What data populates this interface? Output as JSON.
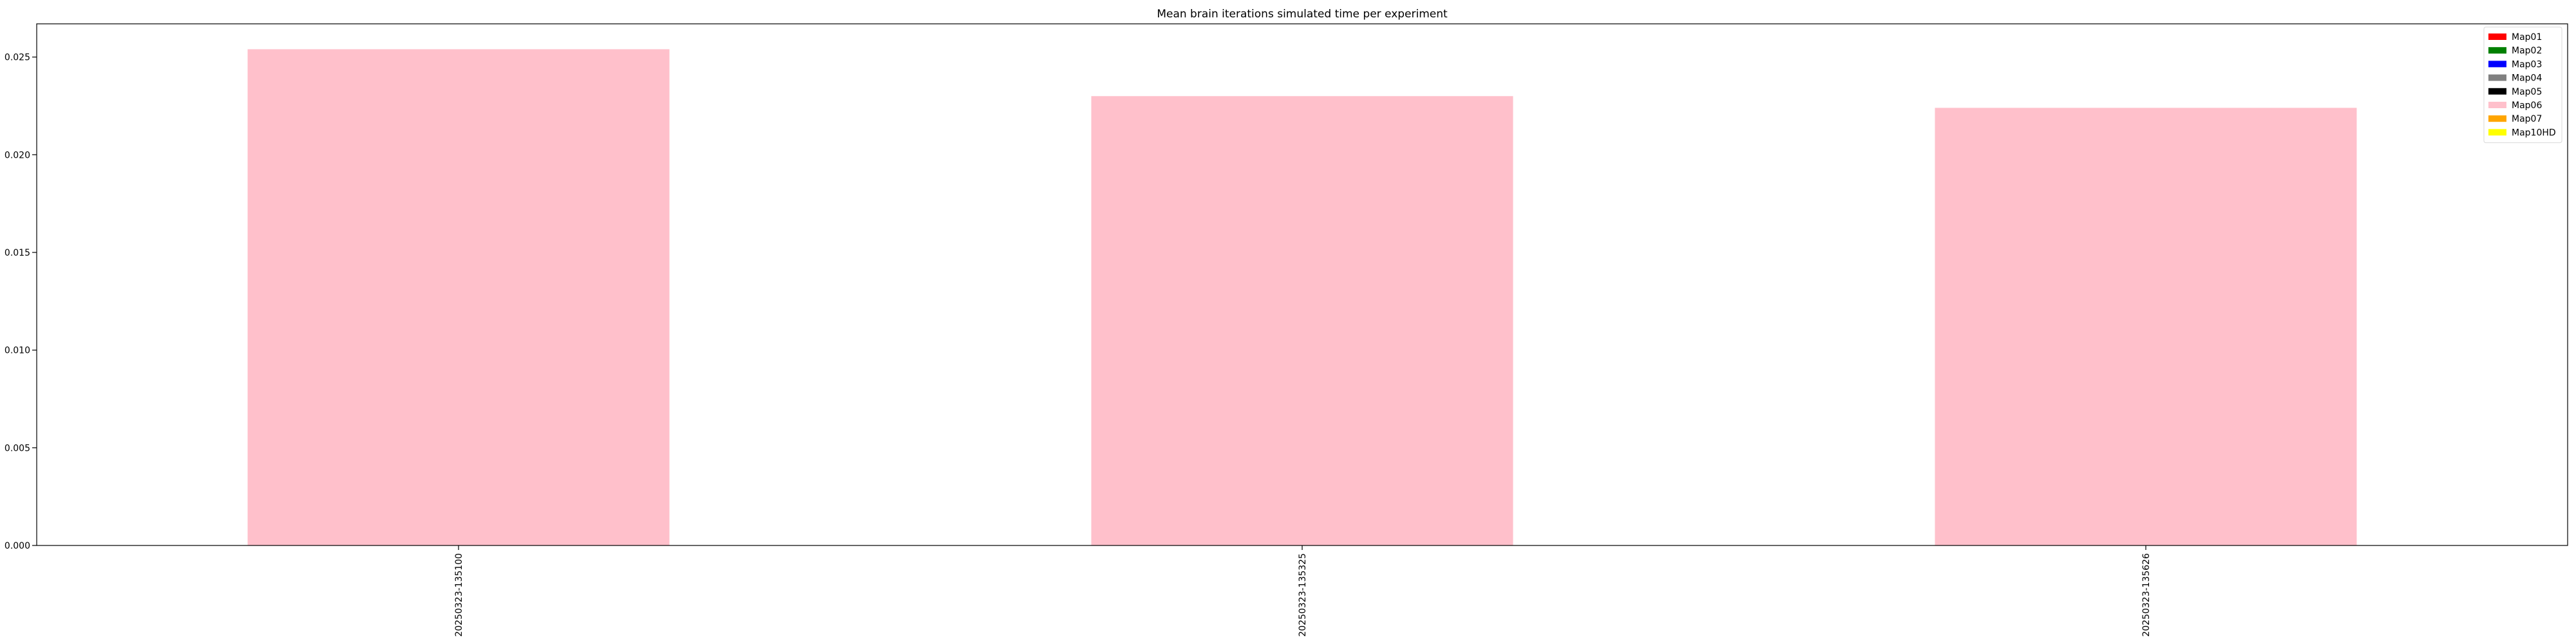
{
  "chart_data": {
    "type": "bar",
    "title": "Mean brain iterations simulated time per experiment",
    "xlabel": "",
    "ylabel": "",
    "categories": [
      "20250323-135100",
      "20250323-135325",
      "20250323-135626"
    ],
    "series": [
      {
        "name": "Map01",
        "color": "#ff0000",
        "values": [
          0,
          0,
          0
        ]
      },
      {
        "name": "Map02",
        "color": "#008000",
        "values": [
          0,
          0,
          0
        ]
      },
      {
        "name": "Map03",
        "color": "#0000ff",
        "values": [
          0,
          0,
          0
        ]
      },
      {
        "name": "Map04",
        "color": "#808080",
        "values": [
          0,
          0,
          0
        ]
      },
      {
        "name": "Map05",
        "color": "#000000",
        "values": [
          0,
          0,
          0
        ]
      },
      {
        "name": "Map06",
        "color": "#ffc0cb",
        "values": [
          0.0254,
          0.023,
          0.0224
        ]
      },
      {
        "name": "Map07",
        "color": "#ffa500",
        "values": [
          0,
          0,
          0
        ]
      },
      {
        "name": "Map10HD",
        "color": "#ffff00",
        "values": [
          0,
          0,
          0
        ]
      }
    ],
    "ylim": [
      0,
      0.0267
    ],
    "yticks": [
      "0.000",
      "0.005",
      "0.010",
      "0.015",
      "0.020",
      "0.025"
    ],
    "stacked": true,
    "grid": false,
    "legend_position": "top-right"
  }
}
